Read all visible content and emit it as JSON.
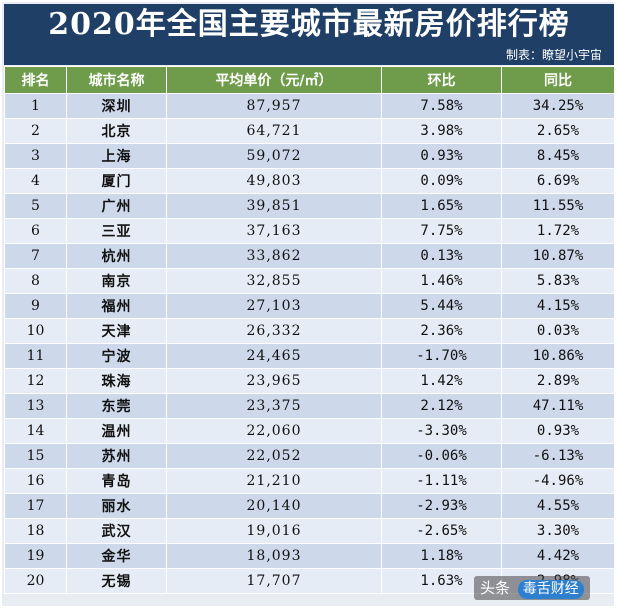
{
  "title": "2020年全国主要城市最新房价排行榜",
  "credit": "制表：瞭望小宇宙",
  "headers": {
    "rank": "排名",
    "city": "城市名称",
    "price": "平均单价（元/㎡）",
    "mom": "环比",
    "yoy": "同比"
  },
  "rows": [
    {
      "rank": "1",
      "city": "深圳",
      "price": "87,957",
      "mom": "7.58%",
      "yoy": "34.25%"
    },
    {
      "rank": "2",
      "city": "北京",
      "price": "64,721",
      "mom": "3.98%",
      "yoy": "2.65%"
    },
    {
      "rank": "3",
      "city": "上海",
      "price": "59,072",
      "mom": "0.93%",
      "yoy": "8.45%"
    },
    {
      "rank": "4",
      "city": "厦门",
      "price": "49,803",
      "mom": "0.09%",
      "yoy": "6.69%"
    },
    {
      "rank": "5",
      "city": "广州",
      "price": "39,851",
      "mom": "1.65%",
      "yoy": "11.55%"
    },
    {
      "rank": "6",
      "city": "三亚",
      "price": "37,163",
      "mom": "7.75%",
      "yoy": "1.72%"
    },
    {
      "rank": "7",
      "city": "杭州",
      "price": "33,862",
      "mom": "0.13%",
      "yoy": "10.87%"
    },
    {
      "rank": "8",
      "city": "南京",
      "price": "32,855",
      "mom": "1.46%",
      "yoy": "5.83%"
    },
    {
      "rank": "9",
      "city": "福州",
      "price": "27,103",
      "mom": "5.44%",
      "yoy": "4.15%"
    },
    {
      "rank": "10",
      "city": "天津",
      "price": "26,332",
      "mom": "2.36%",
      "yoy": "0.03%"
    },
    {
      "rank": "11",
      "city": "宁波",
      "price": "24,465",
      "mom": "-1.70%",
      "yoy": "10.86%"
    },
    {
      "rank": "12",
      "city": "珠海",
      "price": "23,965",
      "mom": "1.42%",
      "yoy": "2.89%"
    },
    {
      "rank": "13",
      "city": "东莞",
      "price": "23,375",
      "mom": "2.12%",
      "yoy": "47.11%"
    },
    {
      "rank": "14",
      "city": "温州",
      "price": "22,060",
      "mom": "-3.30%",
      "yoy": "0.93%"
    },
    {
      "rank": "15",
      "city": "苏州",
      "price": "22,052",
      "mom": "-0.06%",
      "yoy": "-6.13%"
    },
    {
      "rank": "16",
      "city": "青岛",
      "price": "21,210",
      "mom": "-1.11%",
      "yoy": "-4.96%"
    },
    {
      "rank": "17",
      "city": "丽水",
      "price": "20,140",
      "mom": "-2.93%",
      "yoy": "4.55%"
    },
    {
      "rank": "18",
      "city": "武汉",
      "price": "19,016",
      "mom": "-2.65%",
      "yoy": "3.30%"
    },
    {
      "rank": "19",
      "city": "金华",
      "price": "18,093",
      "mom": "1.18%",
      "yoy": "4.42%"
    },
    {
      "rank": "20",
      "city": "无锡",
      "price": "17,707",
      "mom": "1.63%",
      "yoy": "2.98%"
    }
  ],
  "colors": {
    "header_bg": "#1f3f66",
    "column_header_bg": "#6e9c4a",
    "positive": "#e0323c",
    "negative": "#2e9a4a"
  },
  "watermark": {
    "left": "头条",
    "right": "毒舌财经"
  }
}
